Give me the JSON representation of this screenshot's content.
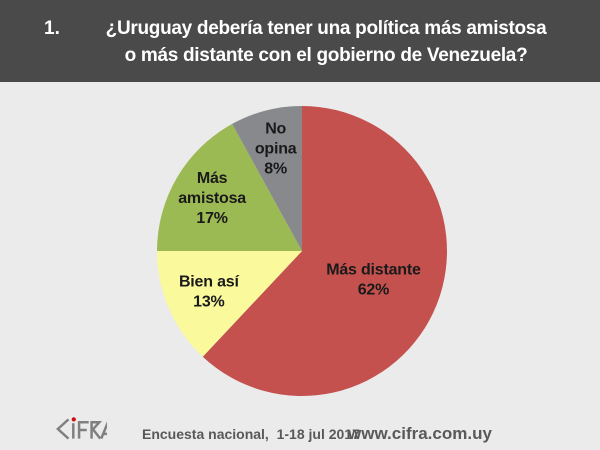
{
  "header": {
    "number": "1.",
    "line1": "¿Uruguay debería tener una política más amistosa",
    "line2": "o más distante con el gobierno de Venezuela?"
  },
  "chart_data": {
    "type": "pie",
    "title": "¿Uruguay debería tener una política más amistosa o más distante con el gobierno de Venezuela?",
    "start_angle_deg": 0,
    "direction": "clockwise",
    "legend": "none",
    "labels_inside": true,
    "categories": [
      "Más distante",
      "Bien así",
      "Más amistosa",
      "No opina"
    ],
    "values": [
      62,
      13,
      17,
      8
    ],
    "slices": [
      {
        "label": "Más distante",
        "value": 62,
        "color": "#C4514E",
        "label_lines": [
          "Más distante",
          "62%"
        ],
        "label_r": 0.53
      },
      {
        "label": "Bien así",
        "value": 13,
        "color": "#FAFA9D",
        "label_lines": [
          "Bien así",
          "13%"
        ],
        "label_r": 0.7
      },
      {
        "label": "Más amistosa",
        "value": 17,
        "color": "#9CBA53",
        "label_lines": [
          "Más",
          "amistosa",
          "17%"
        ],
        "label_r": 0.72
      },
      {
        "label": "No opina",
        "value": 8,
        "color": "#87898C",
        "label_lines": [
          "No",
          "opina",
          "8%"
        ],
        "label_r": 0.73
      }
    ]
  },
  "footer": {
    "logo": "CIFRA",
    "survey_info": "Encuesta nacional,  1-18 jul 2017",
    "website": "www.cifra.com.uy"
  },
  "colors": {
    "header_bg": "#4A4A4A",
    "page_bg": "#EBEBEB",
    "title_text": "#FFFFFF",
    "label_text": "#1A1A1A",
    "footer_text": "#595959",
    "logo_gray": "#808080",
    "logo_dot_red": "#CC1111"
  }
}
